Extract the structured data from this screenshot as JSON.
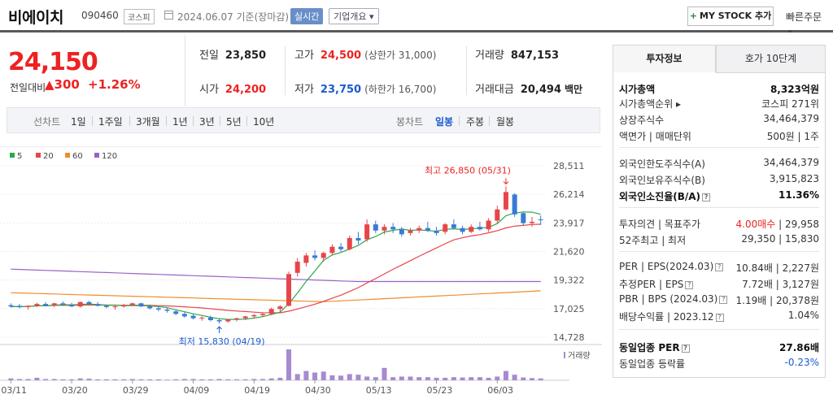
{
  "header": {
    "name": "비에이치",
    "code": "090460",
    "market": "코스피",
    "date": "2024.06.07 기준(장마감)",
    "realtime": "실시간",
    "overview": "기업개요 ▾",
    "mystock": "MY STOCK 추가",
    "mystock_icon": "+",
    "quick_order": "빠른주문 ⌄"
  },
  "price": {
    "current": "24,150",
    "change_label": "전일대비",
    "change": "▲300",
    "percent": "+1.26%"
  },
  "stats": {
    "prev_label": "전일",
    "prev": "23,850",
    "open_label": "시가",
    "open": "24,200",
    "high_label": "고가",
    "high": "24,500",
    "upper_limit": "(상한가 31,000)",
    "low_label": "저가",
    "low": "23,750",
    "lower_limit": "(하한가 16,700)",
    "volume_label": "거래량",
    "volume": "847,153",
    "amount_label": "거래대금",
    "amount": "20,494",
    "amount_unit": "백만"
  },
  "chart_tabs": {
    "period_label": "선차트",
    "periods": [
      "1일",
      "1주일",
      "3개월",
      "1년",
      "3년",
      "5년",
      "10년"
    ],
    "candle_label": "봉차트",
    "candles": [
      "일봉",
      "주봉",
      "월봉"
    ],
    "active_candle": "일봉"
  },
  "right_panel": {
    "tab_info": "투자정보",
    "tab_hoga": "호가 10단계",
    "rows1": [
      {
        "k": "시가총액",
        "v": "8,323억원"
      },
      {
        "k": "시가총액순위 ▸",
        "v": "코스피 271위"
      },
      {
        "k": "상장주식수",
        "v": "34,464,379"
      },
      {
        "k": "액면가 | 매매단위",
        "v": "500원 | 1주"
      }
    ],
    "rows2": [
      {
        "k": "외국인한도주식수(A)",
        "v": "34,464,379"
      },
      {
        "k": "외국인보유주식수(B)",
        "v": "3,915,823"
      },
      {
        "k": "외국인소진율(B/A)",
        "v": "11.36%"
      }
    ],
    "rows3": [
      {
        "k": "투자의견 | 목표주가",
        "v1": "4.00매수",
        "v2": " | 29,958"
      },
      {
        "k": "52주최고 | 최저",
        "v": "29,350 | 15,830"
      }
    ],
    "rows4": [
      {
        "k": "PER | EPS(2024.03)",
        "v": "10.84배 | 2,227원"
      },
      {
        "k": "추정PER | EPS",
        "v": "7.72배 | 3,127원"
      },
      {
        "k": "PBR | BPS (2024.03)",
        "v": "1.19배 | 20,378원"
      },
      {
        "k": "배당수익률 | 2023.12",
        "v": "1.04%"
      }
    ],
    "rows5": [
      {
        "k": "동일업종 PER",
        "v": "27.86배"
      },
      {
        "k": "동일업종 등락률",
        "v": "-0.23%"
      }
    ]
  },
  "chart_data": {
    "type": "candlestick",
    "legend": [
      {
        "name": "5",
        "color": "#2aa84a"
      },
      {
        "name": "20",
        "color": "#e8454a"
      },
      {
        "name": "60",
        "color": "#f08c2e"
      },
      {
        "name": "120",
        "color": "#9a62c8"
      }
    ],
    "y_ticks": [
      28511,
      26214,
      23917,
      21620,
      19322,
      17025,
      14728
    ],
    "x_labels": [
      "03/11",
      "03/20",
      "03/29",
      "04/09",
      "04/19",
      "04/30",
      "05/13",
      "05/23",
      "06/03"
    ],
    "annotations": {
      "high": "최고 26,850 (05/31)",
      "low": "최저 15,830 (04/19)"
    },
    "volume_label": "거래량",
    "candles": [
      [
        17300,
        17450,
        17100,
        17200
      ],
      [
        17250,
        17400,
        17050,
        17150
      ],
      [
        17150,
        17300,
        16950,
        17250
      ],
      [
        17250,
        17500,
        17150,
        17400
      ],
      [
        17400,
        17550,
        17200,
        17250
      ],
      [
        17300,
        17500,
        17150,
        17450
      ],
      [
        17450,
        17600,
        17250,
        17350
      ],
      [
        17350,
        17500,
        17150,
        17200
      ],
      [
        17200,
        17600,
        17100,
        17550
      ],
      [
        17550,
        17650,
        17350,
        17400
      ],
      [
        17400,
        17550,
        17200,
        17250
      ],
      [
        17250,
        17350,
        17050,
        17150
      ],
      [
        17150,
        17300,
        16950,
        17200
      ],
      [
        17200,
        17400,
        17100,
        17300
      ],
      [
        17300,
        17500,
        17250,
        17450
      ],
      [
        17450,
        17500,
        17150,
        17200
      ],
      [
        17200,
        17350,
        16950,
        17050
      ],
      [
        17050,
        17200,
        16800,
        16950
      ],
      [
        16950,
        17100,
        16700,
        16850
      ],
      [
        16800,
        16950,
        16500,
        16600
      ],
      [
        16600,
        16750,
        16300,
        16400
      ],
      [
        16450,
        16600,
        16150,
        16250
      ],
      [
        16250,
        16400,
        16050,
        16300
      ],
      [
        16300,
        16450,
        16000,
        16100
      ],
      [
        16100,
        16250,
        15830,
        16000
      ],
      [
        16000,
        16200,
        15900,
        16150
      ],
      [
        16150,
        16300,
        16000,
        16250
      ],
      [
        16250,
        16450,
        16100,
        16400
      ],
      [
        16400,
        16600,
        16250,
        16500
      ],
      [
        16500,
        16700,
        16350,
        16600
      ],
      [
        16600,
        17100,
        16500,
        17000
      ],
      [
        17000,
        17300,
        16800,
        17200
      ],
      [
        17250,
        20000,
        17200,
        19800
      ],
      [
        19900,
        21100,
        19600,
        20800
      ],
      [
        20700,
        21500,
        20400,
        21300
      ],
      [
        21300,
        21700,
        20900,
        21100
      ],
      [
        21100,
        21600,
        20800,
        21500
      ],
      [
        21500,
        22200,
        21300,
        22000
      ],
      [
        22000,
        22300,
        21600,
        21800
      ],
      [
        21800,
        22900,
        21700,
        22700
      ],
      [
        22700,
        23200,
        22200,
        22500
      ],
      [
        22600,
        24200,
        22400,
        23800
      ],
      [
        23800,
        24100,
        23100,
        23300
      ],
      [
        23300,
        23800,
        23000,
        23600
      ],
      [
        23600,
        23900,
        23100,
        23400
      ],
      [
        23400,
        23600,
        22800,
        23000
      ],
      [
        23100,
        23500,
        22900,
        23300
      ],
      [
        23300,
        23700,
        23100,
        23500
      ],
      [
        23500,
        24000,
        23200,
        23300
      ],
      [
        23300,
        23600,
        22900,
        23100
      ],
      [
        23200,
        23900,
        23000,
        23800
      ],
      [
        23800,
        24200,
        23400,
        23500
      ],
      [
        23500,
        23700,
        23000,
        23200
      ],
      [
        23200,
        23800,
        23100,
        23600
      ],
      [
        23600,
        24000,
        23300,
        23400
      ],
      [
        23400,
        24300,
        23200,
        24100
      ],
      [
        24100,
        25300,
        23900,
        25000
      ],
      [
        25000,
        26850,
        24900,
        26400
      ],
      [
        26200,
        26300,
        24400,
        24600
      ],
      [
        24700,
        24800,
        23700,
        23900
      ],
      [
        23900,
        24400,
        23600,
        24000
      ],
      [
        24200,
        24500,
        23750,
        24150
      ]
    ],
    "volumes": [
      6,
      4,
      4,
      8,
      4,
      4,
      3,
      3,
      6,
      5,
      3,
      3,
      3,
      3,
      4,
      3,
      3,
      3,
      2,
      3,
      4,
      4,
      3,
      3,
      4,
      3,
      3,
      3,
      4,
      4,
      6,
      8,
      100,
      20,
      30,
      25,
      28,
      16,
      15,
      20,
      18,
      12,
      10,
      40,
      10,
      12,
      12,
      10,
      10,
      8,
      8,
      10,
      9,
      10,
      10,
      8,
      12,
      30,
      18,
      9,
      7,
      6
    ]
  }
}
